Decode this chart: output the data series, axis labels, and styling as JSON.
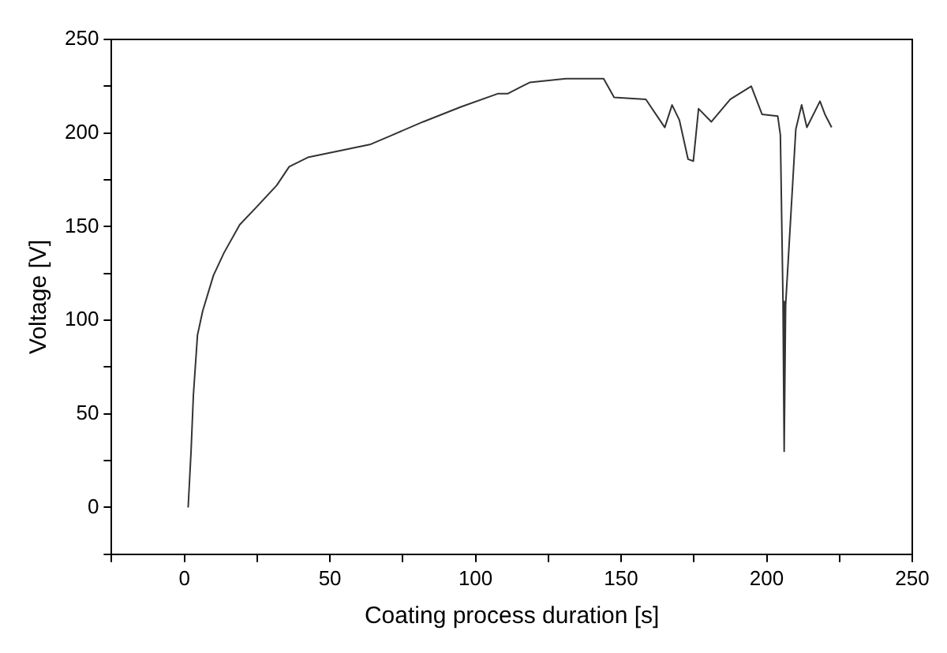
{
  "chart_data": {
    "type": "line",
    "xlabel": "Coating process duration [s]",
    "ylabel": "Voltage [V]",
    "xlim": [
      -25,
      250
    ],
    "ylim": [
      -25,
      250
    ],
    "xticks": [
      {
        "value": -25,
        "label": null
      },
      0,
      {
        "value": 25,
        "label": null
      },
      50,
      {
        "value": 75,
        "label": null
      },
      100,
      {
        "value": 125,
        "label": null
      },
      150,
      {
        "value": 175,
        "label": null
      },
      200,
      {
        "value": 225,
        "label": null
      },
      250
    ],
    "yticks": [
      {
        "value": -25,
        "label": null
      },
      0,
      {
        "value": 25,
        "label": null
      },
      50,
      {
        "value": 75,
        "label": null
      },
      100,
      {
        "value": 125,
        "label": null
      },
      150,
      {
        "value": 175,
        "label": null
      },
      200,
      {
        "value": 225,
        "label": null
      },
      250
    ],
    "grid": false,
    "legend": false,
    "marker": "none",
    "line_style": "solid",
    "series": [
      {
        "color": "#333333",
        "x": [
          1.3,
          2.3,
          3.1,
          4.5,
          6.3,
          10,
          13.6,
          19,
          24.5,
          31.7,
          36,
          42.4,
          51.6,
          64,
          71.5,
          82,
          95,
          107.6,
          111,
          116,
          118.6,
          131,
          144,
          147.6,
          158.5,
          165,
          167.5,
          170,
          173,
          174.8,
          176.6,
          181,
          187.5,
          194.7,
          198.4,
          203.8,
          204.7,
          205.6,
          206,
          206.5,
          210,
          212,
          213.8,
          218.3,
          220,
          222.3
        ],
        "values": [
          0,
          30,
          60,
          92,
          105,
          124,
          136,
          151,
          160,
          172,
          182,
          187,
          190,
          194,
          199,
          206,
          214,
          221,
          221,
          225,
          227,
          229,
          229,
          219,
          218,
          203,
          215,
          207,
          186,
          185,
          213,
          206,
          218,
          225,
          210,
          209,
          199,
          110,
          30,
          108,
          202,
          215,
          203,
          217,
          210,
          203
        ]
      }
    ]
  }
}
